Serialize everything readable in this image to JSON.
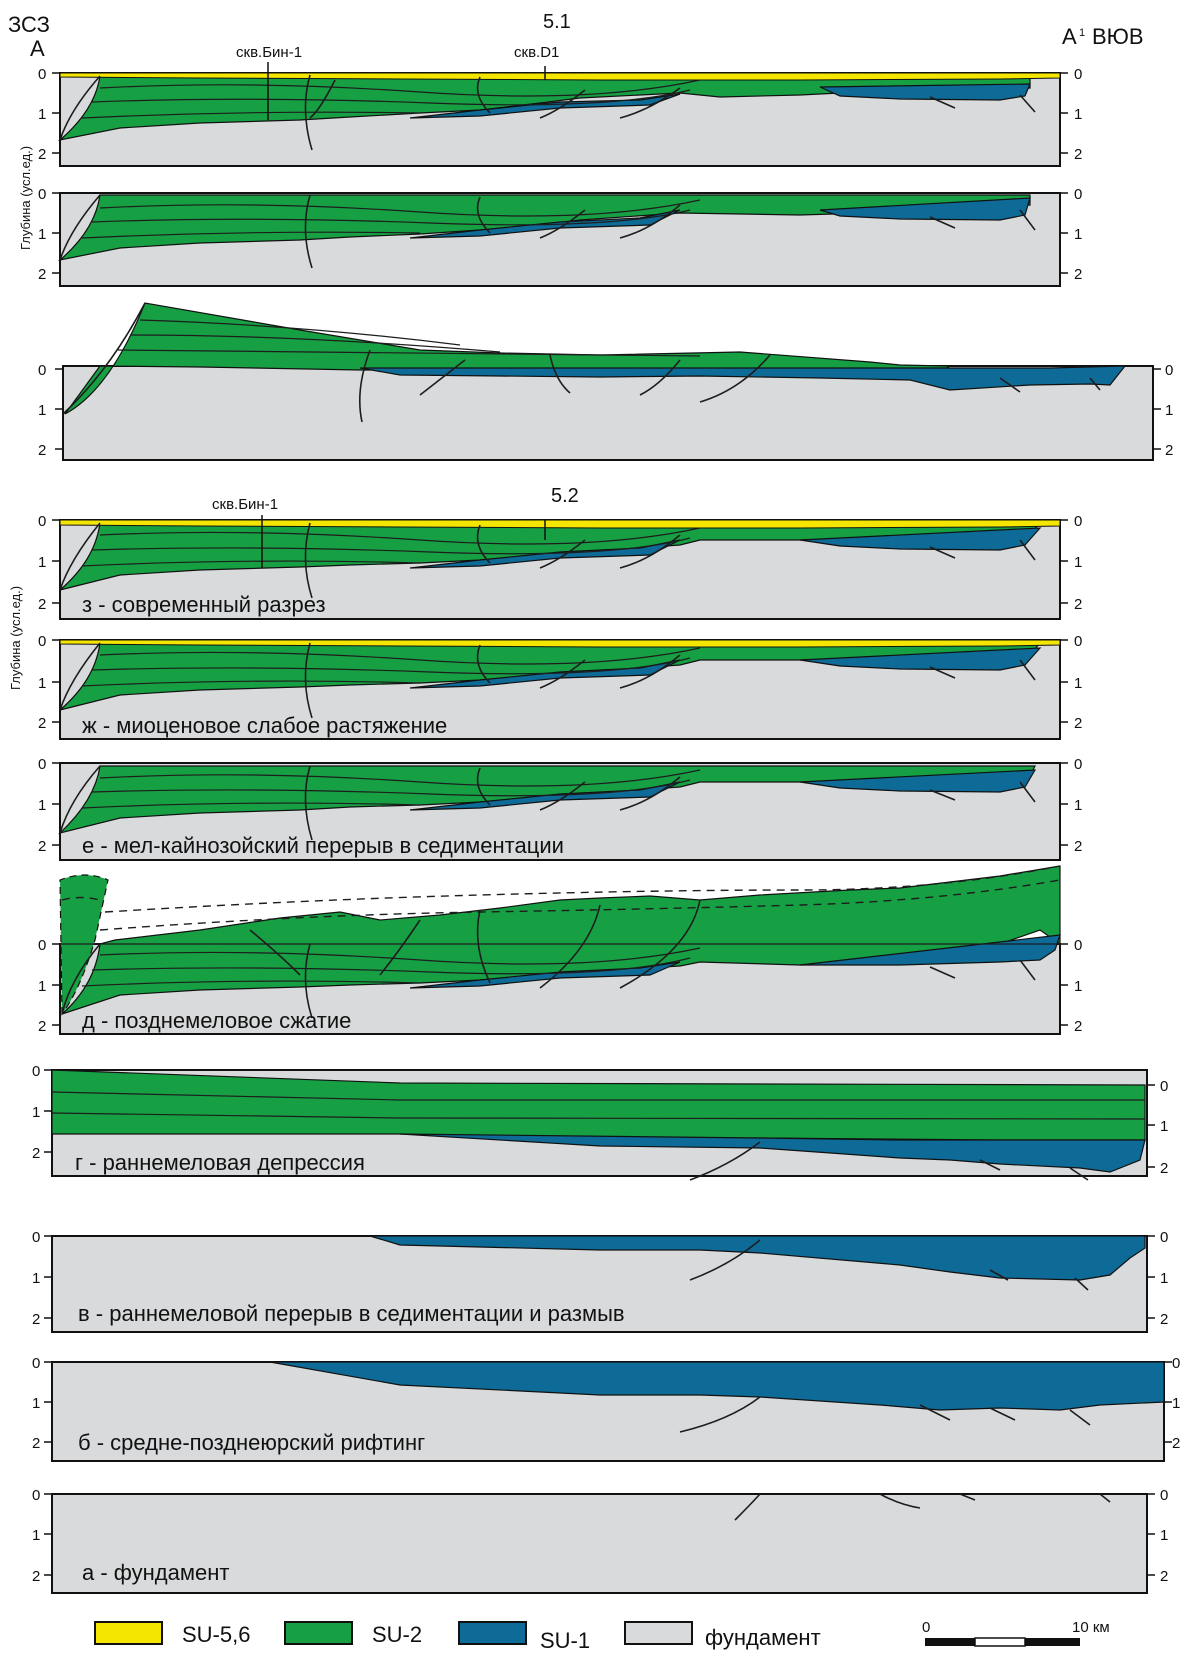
{
  "header": {
    "west_direction": "ЗСЗ",
    "east_direction": "ВЮВ",
    "west_point": "A",
    "east_point": "A",
    "east_point_sup": "1"
  },
  "section_51": {
    "title": "5.1",
    "well_1": "скв.Бин-1",
    "well_2": "скв.D1",
    "y_axis_label": "Глубина (усл.ед.)"
  },
  "section_52": {
    "title": "5.2",
    "well_1": "скв.Бин-1",
    "y_axis_label": "Глубина (усл.ед.)"
  },
  "depth_ticks": [
    "0",
    "1",
    "2"
  ],
  "stages": {
    "z": "з - современный разрез",
    "zh": "ж - миоценовое слабое растяжение",
    "e": "е - мел-кайнозойский перерыв в седиментации",
    "d": "д - позднемеловое сжатие",
    "g": "г - раннемеловая депрессия",
    "v": "в - раннемеловой перерыв в седиментации и размыв",
    "b": "б - средне-позднеюрский рифтинг",
    "a": "а - фундамент"
  },
  "legend": {
    "su56": "SU-5,6",
    "su2": "SU-2",
    "su1": "SU-1",
    "basement": "фундамент"
  },
  "scale_bar": {
    "start": "0",
    "end": "10 км"
  },
  "colors": {
    "su56": "#f4e600",
    "su2": "#16a043",
    "su1": "#0e6a96",
    "basement": "#d9dadb"
  }
}
